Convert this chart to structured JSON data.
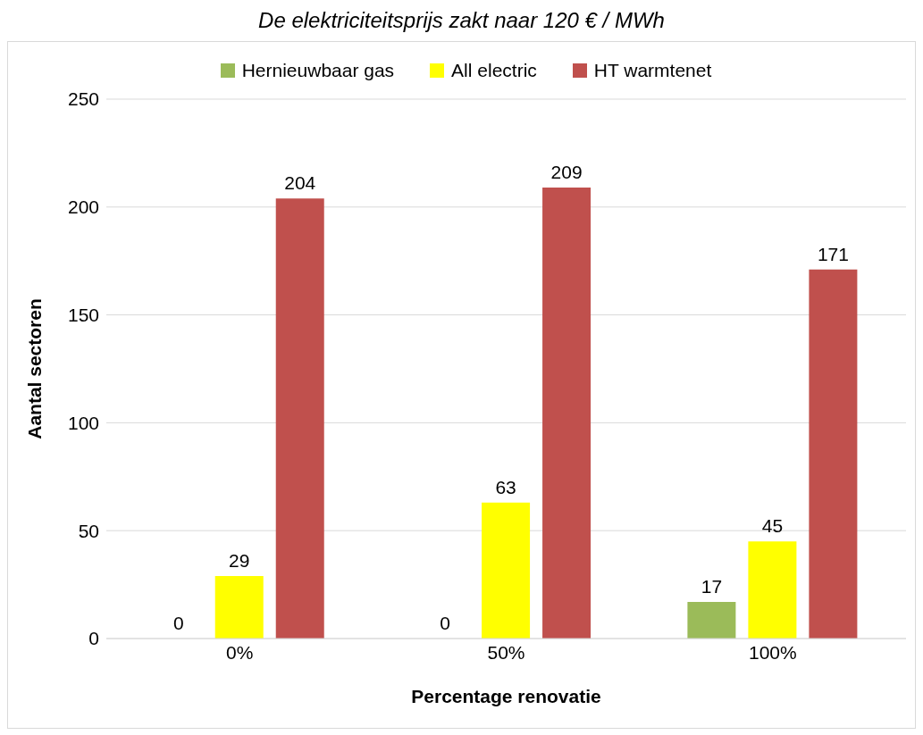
{
  "chart_data": {
    "type": "bar",
    "title": "De elektriciteitsprijs zakt naar 120 € / MWh",
    "xlabel": "Percentage renovatie",
    "ylabel": "Aantal sectoren",
    "categories": [
      "0%",
      "50%",
      "100%"
    ],
    "series": [
      {
        "name": "Hernieuwbaar gas",
        "color": "#9bbb59",
        "values": [
          0,
          0,
          17
        ]
      },
      {
        "name": "All electric",
        "color": "#ffff00",
        "values": [
          29,
          63,
          45
        ]
      },
      {
        "name": "HT warmtenet",
        "color": "#c0504d",
        "values": [
          204,
          209,
          171
        ]
      }
    ],
    "ylim": [
      0,
      250
    ],
    "yticks": [
      0,
      50,
      100,
      150,
      200,
      250
    ],
    "grid": "y",
    "legend": "top",
    "data_labels": true
  }
}
